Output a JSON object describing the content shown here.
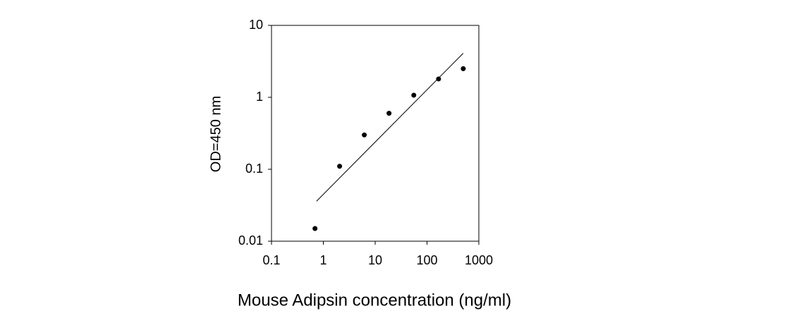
{
  "chart_data": {
    "type": "scatter",
    "log_x": true,
    "log_y": true,
    "x_label": "Mouse Adipsin concentration (ng/ml)",
    "y_label": "OD=450 nm",
    "x": [
      0.69,
      2.06,
      6.17,
      18.5,
      55.6,
      167,
      500
    ],
    "values": [
      0.015,
      0.11,
      0.3,
      0.6,
      1.07,
      1.8,
      2.5
    ],
    "color": "#000000",
    "fit_line": {
      "x": [
        0.74,
        500
      ],
      "values": [
        0.036,
        4.1
      ],
      "color": "#000000"
    },
    "xlim": [
      0.1,
      1000
    ],
    "xticks": [
      0.1,
      1,
      10,
      100,
      1000
    ],
    "ylim": [
      0.01,
      10
    ],
    "yticks": [
      0.01,
      0.1,
      1,
      10
    ]
  }
}
